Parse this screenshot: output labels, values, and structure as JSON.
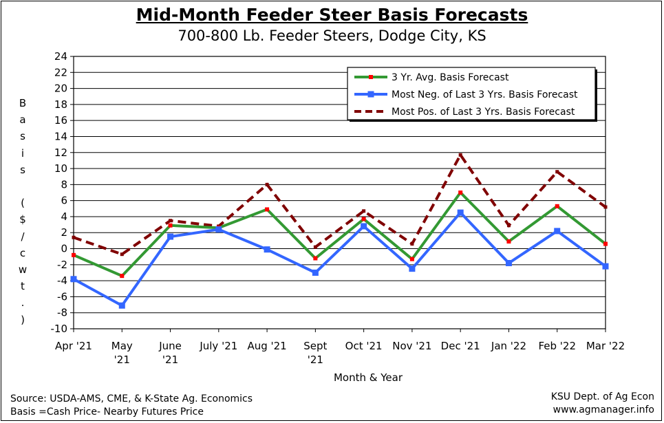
{
  "chart_data": {
    "type": "line",
    "title": "Mid-Month Feeder Steer Basis Forecasts",
    "subtitle": "700-800 Lb. Feeder Steers, Dodge City, KS",
    "xlabel": "Month & Year",
    "ylabel": "Basis ($/cwt.)",
    "ylabel_chars": [
      "B",
      "a",
      "s",
      "i",
      "s",
      "",
      "(",
      "$",
      "/",
      "c",
      "w",
      "t",
      ".",
      ")"
    ],
    "ylim": [
      -10,
      24
    ],
    "yticks": [
      -10,
      -8,
      -6,
      -4,
      -2,
      0,
      2,
      4,
      6,
      8,
      10,
      12,
      14,
      16,
      18,
      20,
      22,
      24
    ],
    "grid": true,
    "legend_position": "top-right",
    "categories": [
      "Apr '21",
      "May '21",
      "June '21",
      "July '21",
      "Aug '21",
      "Sept '21",
      "Oct '21",
      "Nov '21",
      "Dec '21",
      "Jan '22",
      "Feb '22",
      "Mar '22"
    ],
    "category_lines": [
      [
        "Apr '21"
      ],
      [
        "May",
        "'21"
      ],
      [
        "June",
        "'21"
      ],
      [
        "July '21"
      ],
      [
        "Aug '21"
      ],
      [
        "Sept",
        "'21"
      ],
      [
        "Oct '21"
      ],
      [
        "Nov '21"
      ],
      [
        "Dec '21"
      ],
      [
        "Jan '22"
      ],
      [
        "Feb '22"
      ],
      [
        "Mar '22"
      ]
    ],
    "series": [
      {
        "name": "3 Yr. Avg. Basis Forecast",
        "color": "#339933",
        "marker_color": "#ff0000",
        "style": "solid-small-marker",
        "values": [
          -0.8,
          -3.4,
          2.9,
          2.6,
          4.9,
          -1.2,
          3.7,
          -1.3,
          7.0,
          0.9,
          5.3,
          0.6
        ]
      },
      {
        "name": "Most Neg. of Last 3 Yrs. Basis Forecast",
        "color": "#3366ff",
        "marker_color": "#3366ff",
        "style": "solid-square-marker",
        "values": [
          -3.8,
          -7.1,
          1.5,
          2.4,
          -0.1,
          -3.0,
          2.8,
          -2.5,
          4.5,
          -1.8,
          2.2,
          -2.2
        ]
      },
      {
        "name": "Most Pos. of Last 3 Yrs. Basis Forecast",
        "color": "#800000",
        "marker_color": "#800000",
        "style": "dashed",
        "values": [
          1.4,
          -0.7,
          3.5,
          2.8,
          8.0,
          0.2,
          4.7,
          0.6,
          11.7,
          2.9,
          9.6,
          5.2
        ]
      }
    ]
  },
  "footer": {
    "source_line": "Source:  USDA-AMS, CME, & K-State Ag. Economics",
    "basis_line": "Basis =Cash Price- Nearby Futures Price",
    "dept": "KSU Dept. of Ag Econ",
    "website": "www.agmanager.info"
  }
}
